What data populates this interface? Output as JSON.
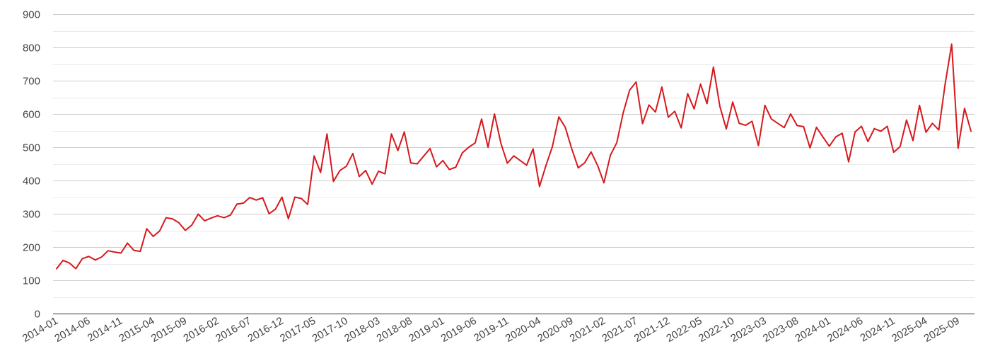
{
  "chart_data": {
    "type": "line",
    "title": "",
    "xlabel": "",
    "ylabel": "",
    "ylim": [
      0,
      900
    ],
    "yticks": [
      0,
      100,
      200,
      300,
      400,
      500,
      600,
      700,
      800,
      900
    ],
    "ytick_labels": [
      "0",
      "100",
      "200",
      "300",
      "400",
      "500",
      "600",
      "700",
      "800",
      "900"
    ],
    "minor_grid": true,
    "grid": true,
    "legend": "none",
    "x_start": "2014-01",
    "x_end": "2025-11",
    "xtick_labels": [
      "2014-01",
      "2014-06",
      "2014-11",
      "2015-04",
      "2015-09",
      "2016-02",
      "2016-07",
      "2016-12",
      "2017-05",
      "2017-10",
      "2018-03",
      "2018-08",
      "2019-01",
      "2019-06",
      "2019-11",
      "2020-04",
      "2020-09",
      "2021-02",
      "2021-07",
      "2021-12",
      "2022-05",
      "2022-10",
      "2023-03",
      "2023-08",
      "2024-01",
      "2024-06",
      "2024-11",
      "2025-04",
      "2025-09"
    ],
    "series": [
      {
        "color": "#d7191c",
        "values": [
          {
            "x": "2014-01",
            "y": 135
          },
          {
            "x": "2014-02",
            "y": 160
          },
          {
            "x": "2014-03",
            "y": 152
          },
          {
            "x": "2014-04",
            "y": 135
          },
          {
            "x": "2014-05",
            "y": 165
          },
          {
            "x": "2014-06",
            "y": 172
          },
          {
            "x": "2014-07",
            "y": 161
          },
          {
            "x": "2014-08",
            "y": 170
          },
          {
            "x": "2014-09",
            "y": 189
          },
          {
            "x": "2014-10",
            "y": 185
          },
          {
            "x": "2014-11",
            "y": 182
          },
          {
            "x": "2014-12",
            "y": 212
          },
          {
            "x": "2015-01",
            "y": 190
          },
          {
            "x": "2015-02",
            "y": 187
          },
          {
            "x": "2015-03",
            "y": 255
          },
          {
            "x": "2015-04",
            "y": 232
          },
          {
            "x": "2015-05",
            "y": 248
          },
          {
            "x": "2015-06",
            "y": 288
          },
          {
            "x": "2015-07",
            "y": 285
          },
          {
            "x": "2015-08",
            "y": 273
          },
          {
            "x": "2015-09",
            "y": 250
          },
          {
            "x": "2015-10",
            "y": 266
          },
          {
            "x": "2015-11",
            "y": 299
          },
          {
            "x": "2015-12",
            "y": 279
          },
          {
            "x": "2016-01",
            "y": 287
          },
          {
            "x": "2016-02",
            "y": 294
          },
          {
            "x": "2016-03",
            "y": 288
          },
          {
            "x": "2016-04",
            "y": 296
          },
          {
            "x": "2016-05",
            "y": 329
          },
          {
            "x": "2016-06",
            "y": 332
          },
          {
            "x": "2016-07",
            "y": 349
          },
          {
            "x": "2016-08",
            "y": 341
          },
          {
            "x": "2016-09",
            "y": 348
          },
          {
            "x": "2016-10",
            "y": 300
          },
          {
            "x": "2016-11",
            "y": 314
          },
          {
            "x": "2016-12",
            "y": 350
          },
          {
            "x": "2017-01",
            "y": 285
          },
          {
            "x": "2017-02",
            "y": 350
          },
          {
            "x": "2017-03",
            "y": 346
          },
          {
            "x": "2017-04",
            "y": 328
          },
          {
            "x": "2017-05",
            "y": 474
          },
          {
            "x": "2017-06",
            "y": 424
          },
          {
            "x": "2017-07",
            "y": 540
          },
          {
            "x": "2017-08",
            "y": 397
          },
          {
            "x": "2017-09",
            "y": 430
          },
          {
            "x": "2017-10",
            "y": 443
          },
          {
            "x": "2017-11",
            "y": 481
          },
          {
            "x": "2017-12",
            "y": 412
          },
          {
            "x": "2018-01",
            "y": 430
          },
          {
            "x": "2018-02",
            "y": 389
          },
          {
            "x": "2018-03",
            "y": 428
          },
          {
            "x": "2018-04",
            "y": 420
          },
          {
            "x": "2018-05",
            "y": 540
          },
          {
            "x": "2018-06",
            "y": 490
          },
          {
            "x": "2018-07",
            "y": 546
          },
          {
            "x": "2018-08",
            "y": 453
          },
          {
            "x": "2018-09",
            "y": 450
          },
          {
            "x": "2018-10",
            "y": 473
          },
          {
            "x": "2018-11",
            "y": 496
          },
          {
            "x": "2018-12",
            "y": 441
          },
          {
            "x": "2019-01",
            "y": 460
          },
          {
            "x": "2019-02",
            "y": 433
          },
          {
            "x": "2019-03",
            "y": 440
          },
          {
            "x": "2019-04",
            "y": 483
          },
          {
            "x": "2019-05",
            "y": 500
          },
          {
            "x": "2019-06",
            "y": 513
          },
          {
            "x": "2019-07",
            "y": 585
          },
          {
            "x": "2019-08",
            "y": 500
          },
          {
            "x": "2019-09",
            "y": 600
          },
          {
            "x": "2019-10",
            "y": 512
          },
          {
            "x": "2019-11",
            "y": 452
          },
          {
            "x": "2019-12",
            "y": 474
          },
          {
            "x": "2020-01",
            "y": 460
          },
          {
            "x": "2020-02",
            "y": 446
          },
          {
            "x": "2020-03",
            "y": 495
          },
          {
            "x": "2020-04",
            "y": 382
          },
          {
            "x": "2020-05",
            "y": 445
          },
          {
            "x": "2020-06",
            "y": 502
          },
          {
            "x": "2020-07",
            "y": 591
          },
          {
            "x": "2020-08",
            "y": 560
          },
          {
            "x": "2020-09",
            "y": 495
          },
          {
            "x": "2020-10",
            "y": 438
          },
          {
            "x": "2020-11",
            "y": 453
          },
          {
            "x": "2020-12",
            "y": 486
          },
          {
            "x": "2021-01",
            "y": 446
          },
          {
            "x": "2021-02",
            "y": 393
          },
          {
            "x": "2021-03",
            "y": 476
          },
          {
            "x": "2021-04",
            "y": 514
          },
          {
            "x": "2021-05",
            "y": 604
          },
          {
            "x": "2021-06",
            "y": 672
          },
          {
            "x": "2021-07",
            "y": 696
          },
          {
            "x": "2021-08",
            "y": 571
          },
          {
            "x": "2021-09",
            "y": 627
          },
          {
            "x": "2021-10",
            "y": 606
          },
          {
            "x": "2021-11",
            "y": 681
          },
          {
            "x": "2021-12",
            "y": 590
          },
          {
            "x": "2022-01",
            "y": 608
          },
          {
            "x": "2022-02",
            "y": 558
          },
          {
            "x": "2022-03",
            "y": 661
          },
          {
            "x": "2022-04",
            "y": 615
          },
          {
            "x": "2022-05",
            "y": 690
          },
          {
            "x": "2022-06",
            "y": 631
          },
          {
            "x": "2022-07",
            "y": 741
          },
          {
            "x": "2022-08",
            "y": 623
          },
          {
            "x": "2022-09",
            "y": 555
          },
          {
            "x": "2022-10",
            "y": 636
          },
          {
            "x": "2022-11",
            "y": 572
          },
          {
            "x": "2022-12",
            "y": 566
          },
          {
            "x": "2023-01",
            "y": 578
          },
          {
            "x": "2023-02",
            "y": 505
          },
          {
            "x": "2023-03",
            "y": 626
          },
          {
            "x": "2023-04",
            "y": 585
          },
          {
            "x": "2023-05",
            "y": 572
          },
          {
            "x": "2023-06",
            "y": 559
          },
          {
            "x": "2023-07",
            "y": 600
          },
          {
            "x": "2023-08",
            "y": 565
          },
          {
            "x": "2023-09",
            "y": 562
          },
          {
            "x": "2023-10",
            "y": 498
          },
          {
            "x": "2023-11",
            "y": 560
          },
          {
            "x": "2023-12",
            "y": 531
          },
          {
            "x": "2024-01",
            "y": 503
          },
          {
            "x": "2024-02",
            "y": 531
          },
          {
            "x": "2024-03",
            "y": 542
          },
          {
            "x": "2024-04",
            "y": 456
          },
          {
            "x": "2024-05",
            "y": 546
          },
          {
            "x": "2024-06",
            "y": 563
          },
          {
            "x": "2024-07",
            "y": 517
          },
          {
            "x": "2024-08",
            "y": 556
          },
          {
            "x": "2024-09",
            "y": 548
          },
          {
            "x": "2024-10",
            "y": 563
          },
          {
            "x": "2024-11",
            "y": 485
          },
          {
            "x": "2024-12",
            "y": 502
          },
          {
            "x": "2025-01",
            "y": 582
          },
          {
            "x": "2025-02",
            "y": 520
          },
          {
            "x": "2025-03",
            "y": 626
          },
          {
            "x": "2025-04",
            "y": 545
          },
          {
            "x": "2025-05",
            "y": 572
          },
          {
            "x": "2025-06",
            "y": 552
          },
          {
            "x": "2025-07",
            "y": 692
          },
          {
            "x": "2025-08",
            "y": 810
          },
          {
            "x": "2025-09",
            "y": 497
          },
          {
            "x": "2025-10",
            "y": 617
          },
          {
            "x": "2025-11",
            "y": 548
          }
        ]
      }
    ]
  }
}
